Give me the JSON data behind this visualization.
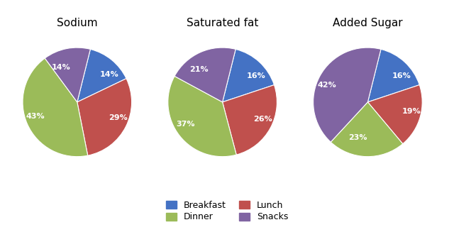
{
  "charts": [
    {
      "title": "Sodium",
      "values": [
        14,
        29,
        43,
        14
      ],
      "labels": [
        "14%",
        "29%",
        "43%",
        "14%"
      ],
      "startangle": 76
    },
    {
      "title": "Saturated fat",
      "values": [
        16,
        26,
        37,
        21
      ],
      "labels": [
        "16%",
        "26%",
        "37%",
        "21%"
      ],
      "startangle": 76
    },
    {
      "title": "Added Sugar",
      "values": [
        16,
        19,
        23,
        42
      ],
      "labels": [
        "16%",
        "19%",
        "23%",
        "42%"
      ],
      "startangle": 76
    }
  ],
  "colors": [
    "#4472C4",
    "#C0504D",
    "#9BBB59",
    "#8064A2"
  ],
  "legend_labels": [
    "Breakfast",
    "Lunch",
    "Dinner",
    "Snacks"
  ],
  "text_color": "#FFFFFF",
  "label_fontsize": 8,
  "title_fontsize": 11,
  "background_color": "#FFFFFF"
}
